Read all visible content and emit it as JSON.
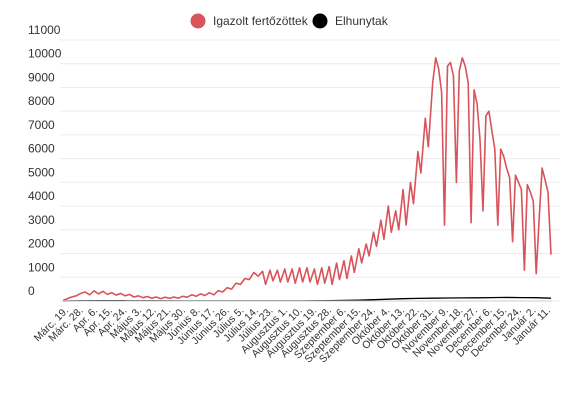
{
  "chart_data": {
    "type": "line",
    "legend": {
      "position": "top-center",
      "items": [
        {
          "name": "Igazolt fertőzöttek",
          "color": "#d9535b"
        },
        {
          "name": "Elhunytak",
          "color": "#000000"
        }
      ]
    },
    "y_axis": {
      "range": [
        0,
        11000
      ],
      "ticks": [
        "11000",
        "10000",
        "9000",
        "8000",
        "7000",
        "6000",
        "5000",
        "4000",
        "3000",
        "2000",
        "1000",
        "0"
      ]
    },
    "x_axis": {
      "tick_labels": [
        "Márc. 19.",
        "Márc. 28.",
        "Apr. 6.",
        "Apr. 15.",
        "Apr. 24.",
        "Május 3.",
        "Május 12.",
        "Május 21.",
        "Május 30.",
        "Június 8.",
        "Június 17.",
        "Június 26.",
        "Július 5.",
        "Július 14.",
        "Július 23.",
        "Augusztus 1.",
        "Augusztus 10.",
        "Augusztus 19.",
        "Augusztus 28.",
        "Szeptember 6.",
        "Szeptember 15.",
        "Szeptember 24.",
        "Október 4.",
        "Október 13.",
        "Október 22.",
        "Október 31.",
        "November 9.",
        "November 18.",
        "November 27.",
        "December 6.",
        "December 15.",
        "December 24.",
        "Január 2.",
        "Január 11."
      ]
    },
    "series": [
      {
        "name": "Igazolt fertőzöttek",
        "color": "#d9535b",
        "points": [
          [
            0,
            20
          ],
          [
            5,
            150
          ],
          [
            9,
            220
          ],
          [
            12,
            320
          ],
          [
            15,
            380
          ],
          [
            18,
            260
          ],
          [
            21,
            430
          ],
          [
            24,
            300
          ],
          [
            27,
            410
          ],
          [
            30,
            280
          ],
          [
            33,
            350
          ],
          [
            36,
            250
          ],
          [
            39,
            320
          ],
          [
            42,
            220
          ],
          [
            45,
            280
          ],
          [
            48,
            170
          ],
          [
            51,
            220
          ],
          [
            54,
            140
          ],
          [
            57,
            190
          ],
          [
            60,
            120
          ],
          [
            63,
            170
          ],
          [
            66,
            100
          ],
          [
            69,
            160
          ],
          [
            72,
            110
          ],
          [
            75,
            170
          ],
          [
            78,
            120
          ],
          [
            81,
            200
          ],
          [
            84,
            160
          ],
          [
            87,
            260
          ],
          [
            90,
            200
          ],
          [
            93,
            300
          ],
          [
            96,
            230
          ],
          [
            99,
            350
          ],
          [
            102,
            260
          ],
          [
            105,
            440
          ],
          [
            108,
            380
          ],
          [
            111,
            560
          ],
          [
            114,
            500
          ],
          [
            117,
            750
          ],
          [
            120,
            700
          ],
          [
            123,
            950
          ],
          [
            126,
            900
          ],
          [
            129,
            1200
          ],
          [
            132,
            1050
          ],
          [
            135,
            1250
          ],
          [
            137,
            700
          ],
          [
            140,
            1300
          ],
          [
            142,
            850
          ],
          [
            145,
            1300
          ],
          [
            147,
            800
          ],
          [
            150,
            1350
          ],
          [
            152,
            800
          ],
          [
            155,
            1350
          ],
          [
            157,
            750
          ],
          [
            160,
            1400
          ],
          [
            162,
            800
          ],
          [
            165,
            1400
          ],
          [
            167,
            800
          ],
          [
            170,
            1350
          ],
          [
            172,
            700
          ],
          [
            175,
            1400
          ],
          [
            177,
            750
          ],
          [
            180,
            1450
          ],
          [
            182,
            700
          ],
          [
            185,
            1600
          ],
          [
            187,
            900
          ],
          [
            190,
            1700
          ],
          [
            192,
            950
          ],
          [
            195,
            1900
          ],
          [
            197,
            1200
          ],
          [
            200,
            2200
          ],
          [
            202,
            1600
          ],
          [
            205,
            2400
          ],
          [
            207,
            1900
          ],
          [
            210,
            2900
          ],
          [
            212,
            2300
          ],
          [
            215,
            3400
          ],
          [
            217,
            2600
          ],
          [
            220,
            4000
          ],
          [
            222,
            2900
          ],
          [
            225,
            3800
          ],
          [
            227,
            3000
          ],
          [
            230,
            4700
          ],
          [
            232,
            3200
          ],
          [
            235,
            5000
          ],
          [
            237,
            4100
          ],
          [
            240,
            6300
          ],
          [
            242,
            5400
          ],
          [
            245,
            7700
          ],
          [
            247,
            6500
          ],
          [
            250,
            9200
          ],
          [
            252,
            10250
          ],
          [
            254,
            9800
          ],
          [
            256,
            8800
          ],
          [
            258,
            3200
          ],
          [
            260,
            9900
          ],
          [
            262,
            10050
          ],
          [
            264,
            9500
          ],
          [
            266,
            5000
          ],
          [
            268,
            9700
          ],
          [
            270,
            10250
          ],
          [
            272,
            9900
          ],
          [
            274,
            9200
          ],
          [
            276,
            3300
          ],
          [
            278,
            8900
          ],
          [
            280,
            8300
          ],
          [
            282,
            6800
          ],
          [
            284,
            3800
          ],
          [
            286,
            7800
          ],
          [
            288,
            8000
          ],
          [
            290,
            7200
          ],
          [
            292,
            6400
          ],
          [
            294,
            3200
          ],
          [
            296,
            6400
          ],
          [
            298,
            6100
          ],
          [
            300,
            5600
          ],
          [
            302,
            5200
          ],
          [
            304,
            2500
          ],
          [
            306,
            5300
          ],
          [
            308,
            5000
          ],
          [
            310,
            4700
          ],
          [
            312,
            1300
          ],
          [
            314,
            4900
          ],
          [
            316,
            4600
          ],
          [
            318,
            4200
          ],
          [
            320,
            1150
          ],
          [
            322,
            3500
          ],
          [
            324,
            5600
          ],
          [
            326,
            5100
          ],
          [
            328,
            4600
          ],
          [
            330,
            1950
          ]
        ]
      },
      {
        "name": "Elhunytak",
        "color": "#000000",
        "points": [
          [
            0,
            0
          ],
          [
            10,
            10
          ],
          [
            25,
            15
          ],
          [
            40,
            12
          ],
          [
            60,
            8
          ],
          [
            80,
            4
          ],
          [
            100,
            3
          ],
          [
            120,
            3
          ],
          [
            140,
            3
          ],
          [
            160,
            4
          ],
          [
            170,
            8
          ],
          [
            180,
            12
          ],
          [
            190,
            25
          ],
          [
            200,
            35
          ],
          [
            210,
            55
          ],
          [
            220,
            75
          ],
          [
            230,
            95
          ],
          [
            240,
            110
          ],
          [
            250,
            120
          ],
          [
            260,
            125
          ],
          [
            270,
            130
          ],
          [
            280,
            135
          ],
          [
            290,
            145
          ],
          [
            300,
            150
          ],
          [
            310,
            145
          ],
          [
            320,
            140
          ],
          [
            330,
            120
          ]
        ]
      }
    ]
  }
}
